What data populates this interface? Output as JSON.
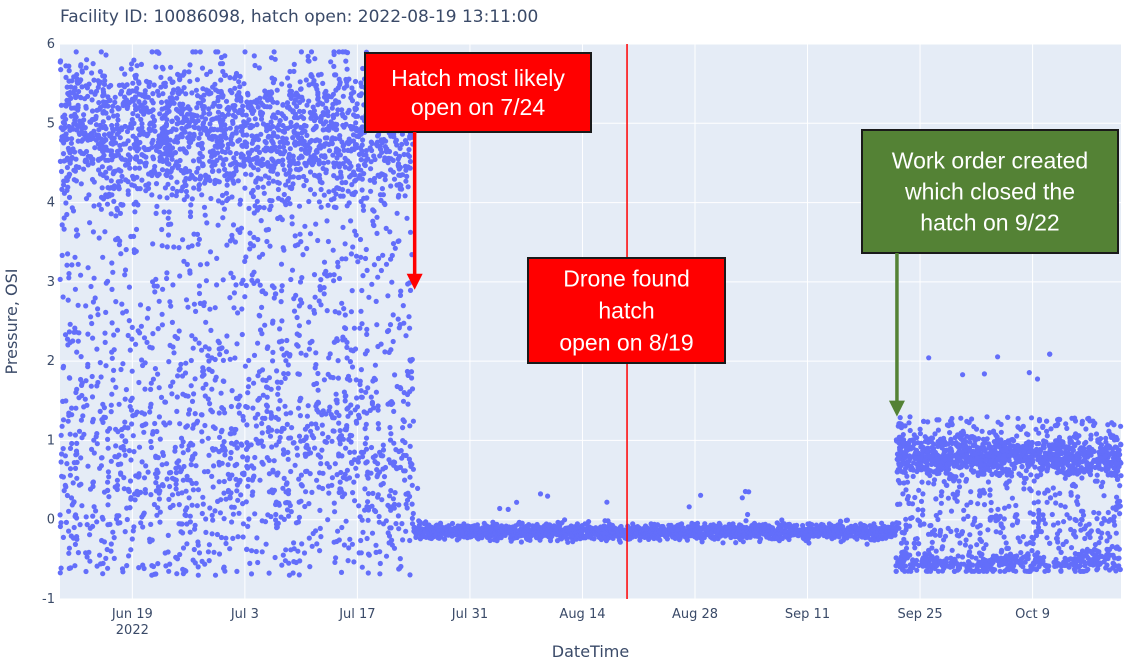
{
  "chart_data": {
    "type": "scatter",
    "title": "Facility ID: 10086098, hatch open: 2022-08-19 13:11:00",
    "xlabel": "DateTime",
    "ylabel": "Pressure, OSI",
    "x_range": [
      "2022-06-10",
      "2022-10-20"
    ],
    "ylim": [
      -1,
      6
    ],
    "y_ticks": [
      -1,
      0,
      1,
      2,
      3,
      4,
      5,
      6
    ],
    "x_ticks": [
      {
        "date": "2022-06-19",
        "label": "Jun 19",
        "sublabel": "2022"
      },
      {
        "date": "2022-07-03",
        "label": "Jul 3",
        "sublabel": ""
      },
      {
        "date": "2022-07-17",
        "label": "Jul 17",
        "sublabel": ""
      },
      {
        "date": "2022-07-31",
        "label": "Jul 31",
        "sublabel": ""
      },
      {
        "date": "2022-08-14",
        "label": "Aug 14",
        "sublabel": ""
      },
      {
        "date": "2022-08-28",
        "label": "Aug 28",
        "sublabel": ""
      },
      {
        "date": "2022-09-11",
        "label": "Sep 11",
        "sublabel": ""
      },
      {
        "date": "2022-09-25",
        "label": "Sep 25",
        "sublabel": ""
      },
      {
        "date": "2022-10-09",
        "label": "Oct 9",
        "sublabel": ""
      }
    ],
    "grid": true,
    "colors": {
      "points": "#636efa",
      "plot_bg": "#e5ecf6",
      "grid": "#ffffff",
      "vline": "#ff0000"
    },
    "series": [
      {
        "name": "",
        "segments": [
          {
            "start": "2022-06-10",
            "end": "2022-07-24",
            "min": -0.7,
            "max": 5.9,
            "cluster_mid": 4.9,
            "cluster_spread": 0.45
          },
          {
            "start": "2022-07-24",
            "end": "2022-09-22",
            "min": -0.3,
            "max": 0.4,
            "cluster_mid": -0.15,
            "cluster_spread": 0.05
          },
          {
            "start": "2022-09-22",
            "end": "2022-10-20",
            "min": -0.65,
            "max": 2.1,
            "cluster_mid": 0.8,
            "cluster_spread": 0.12
          }
        ]
      }
    ],
    "vline": {
      "date": "2022-08-19",
      "value": 13.11
    },
    "annotations": [
      {
        "lines": [
          "Hatch most likely",
          "open on 7/24"
        ],
        "color": "#ff0000",
        "arrow_color": "#ff0000",
        "arrow_to": {
          "date": "2022-07-24",
          "y": 2.9
        }
      },
      {
        "lines": [
          "Drone found",
          "hatch",
          "open on 8/19"
        ],
        "color": "#ff0000",
        "arrow_color": "",
        "arrow_to": null
      },
      {
        "lines": [
          "Work order created",
          "which closed the",
          "hatch on 9/22"
        ],
        "color": "#548235",
        "arrow_color": "#548235",
        "arrow_to": {
          "date": "2022-09-22",
          "y": 1.3
        }
      }
    ]
  }
}
